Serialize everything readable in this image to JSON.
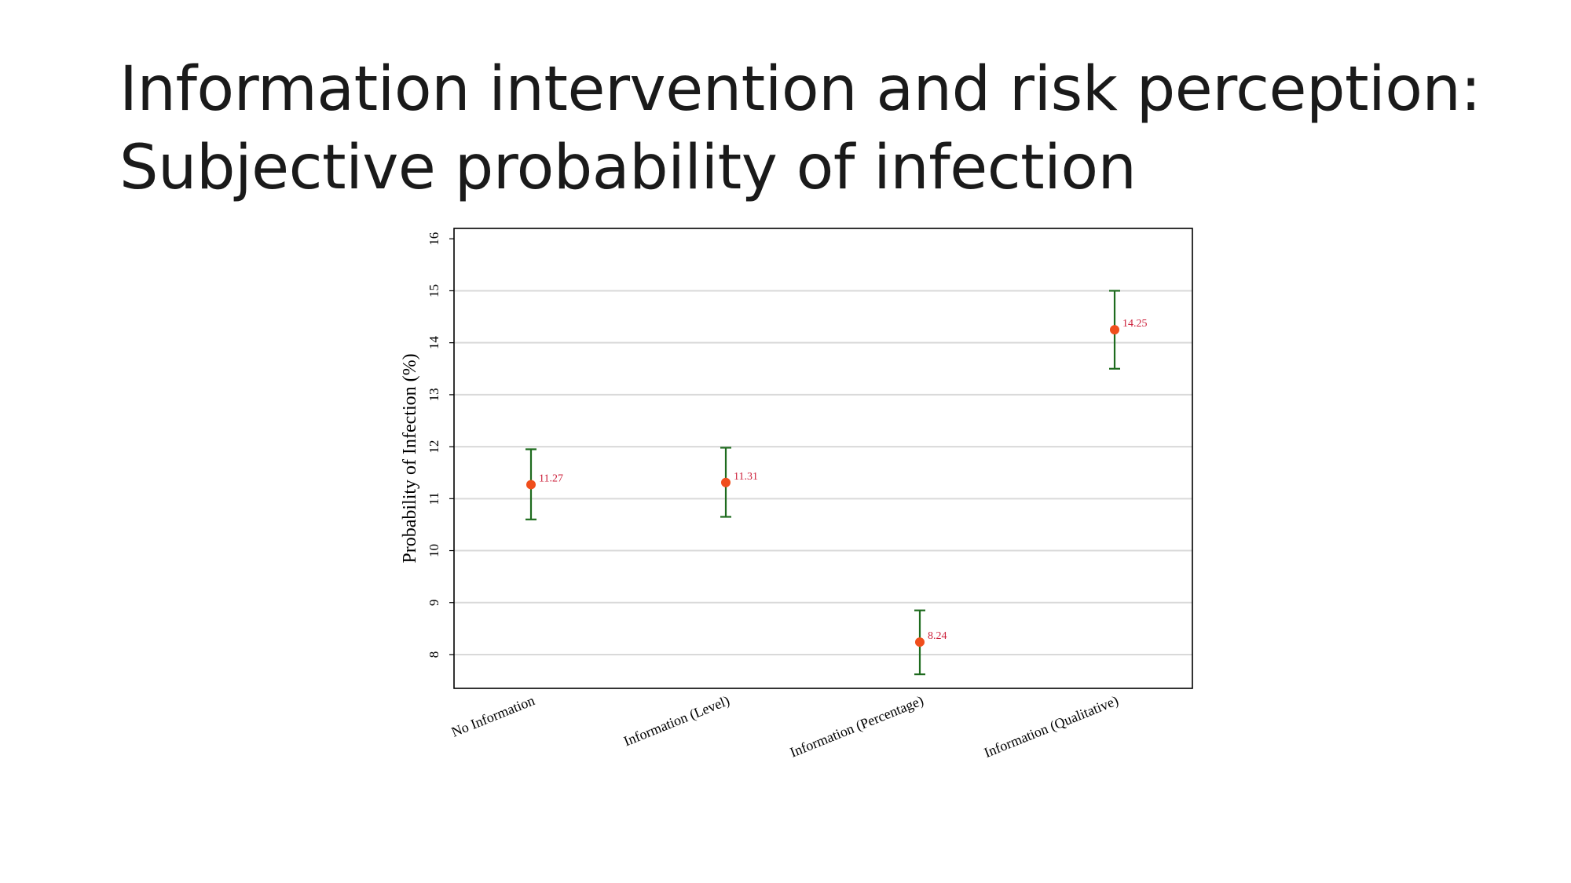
{
  "slide": {
    "title_line1": "Information intervention and risk perception:",
    "title_line2": "Subjective probability of infection"
  },
  "chart_data": {
    "type": "scatter",
    "title": "",
    "xlabel": "",
    "ylabel": "Probability of Infection (%)",
    "categories": [
      "No Information",
      "Information (Level)",
      "Information (Percentage)",
      "Information (Qualitative)"
    ],
    "values": [
      11.27,
      11.31,
      8.24,
      14.25
    ],
    "ci_lower": [
      10.6,
      10.65,
      7.62,
      13.5
    ],
    "ci_upper": [
      11.95,
      11.98,
      8.85,
      15.0
    ],
    "data_labels": [
      "11.27",
      "11.31",
      "8.24",
      "14.25"
    ],
    "ylim": [
      7.35,
      16.2
    ],
    "yticks": [
      8,
      9,
      10,
      11,
      12,
      13,
      14,
      15,
      16
    ],
    "grid": true,
    "colors": {
      "point": "#f04e1c",
      "errorbar": "#1e6b1e",
      "label": "#cc1f3a",
      "grid": "#d9d9d9",
      "frame": "#000000"
    }
  }
}
